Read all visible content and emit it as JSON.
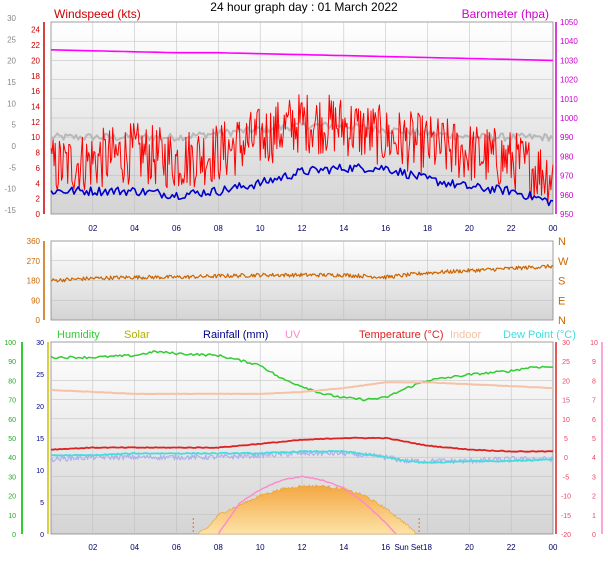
{
  "title": "24 hour graph day : 01 March 2022",
  "colors": {
    "plot_bg_top": "#ffffff",
    "plot_bg_bottom": "#d4d4d4",
    "grid": "#bbbbbb",
    "wind_speed": "#ff0000",
    "wind_avg": "#0000cc",
    "wind_gust_avg": "#b8b8b8",
    "barometer": "#ff00ff",
    "wind_dir": "#cc6600",
    "humidity": "#33cc33",
    "solar": "#f2b24e",
    "rainfall": "#000088",
    "uv": "#ff88cc",
    "temperature": "#dd2222",
    "indoor": "#f5c2a5",
    "dew_point": "#44dddd",
    "lavender": "#b0b0ee",
    "wind_axis_text": "#cc0000",
    "baro_axis_text": "#cc00cc",
    "dir_axis_text": "#cc6600",
    "hum_axis_text": "#22aa22",
    "solar_axis_text": "#b0b000",
    "temp_axis_text": "#ee4466",
    "temp_scale_left": "#000088"
  },
  "chart_data": [
    {
      "type": "line",
      "id": "wind-baro",
      "ylabel_left": "Windspeed (kts)",
      "ylabel_right": "Barometer (hpa)",
      "x_ticks": [
        "02",
        "04",
        "06",
        "08",
        "10",
        "12",
        "14",
        "16",
        "18",
        "20",
        "22",
        "00"
      ],
      "y_left_ticks": [
        "24",
        "22",
        "20",
        "18",
        "16",
        "14",
        "12",
        "10",
        "8",
        "6",
        "4",
        "2",
        "0"
      ],
      "y_left_outer_ticks": [
        "30",
        "25",
        "20",
        "15",
        "10",
        "5",
        "0",
        "-5",
        "-10",
        "-15"
      ],
      "y_right_ticks": [
        "1050",
        "1040",
        "1030",
        "1020",
        "1010",
        "1000",
        "990",
        "980",
        "970",
        "960",
        "950"
      ],
      "ylim_left": [
        0,
        25
      ],
      "ylim_right": [
        950,
        1050
      ],
      "grid": true,
      "series": [
        {
          "key": "barometer",
          "hours": [
            0,
            2,
            4,
            6,
            8,
            10,
            12,
            14,
            16,
            18,
            20,
            22,
            24
          ],
          "values": [
            1035.5,
            1035,
            1034.5,
            1034,
            1034,
            1033.5,
            1033,
            1032.5,
            1032,
            1031.5,
            1031,
            1030.5,
            1030
          ]
        },
        {
          "key": "wind_speed",
          "hours": [
            0,
            2,
            4,
            6,
            8,
            10,
            12,
            14,
            16,
            18,
            20,
            22,
            24
          ],
          "values": [
            6,
            7,
            8,
            7,
            8,
            10,
            12,
            11.5,
            10,
            9,
            8,
            7,
            5
          ]
        },
        {
          "key": "wind_avg",
          "hours": [
            0,
            2,
            4,
            6,
            8,
            10,
            12,
            14,
            16,
            18,
            20,
            22,
            24
          ],
          "values": [
            3,
            3,
            3,
            2.5,
            3,
            4,
            5.5,
            6,
            6,
            4.5,
            3.5,
            3,
            1.5
          ]
        },
        {
          "key": "wind_gust_avg",
          "hours": [
            0,
            2,
            4,
            6,
            8,
            10,
            12,
            14,
            16,
            18,
            20,
            22,
            24
          ],
          "values": [
            10,
            10,
            10,
            10,
            10.5,
            11,
            11.5,
            11.5,
            11,
            10.5,
            10,
            10,
            10
          ]
        }
      ]
    },
    {
      "type": "line",
      "id": "wind-direction",
      "y_left_ticks": [
        "360",
        "270",
        "180",
        "90",
        "0"
      ],
      "y_right_ticks": [
        "N",
        "W",
        "S",
        "E",
        "N"
      ],
      "ylim": [
        0,
        360
      ],
      "grid": true,
      "series": [
        {
          "key": "wind_dir",
          "hours": [
            0,
            2,
            4,
            6,
            8,
            10,
            12,
            14,
            16,
            18,
            20,
            22,
            24
          ],
          "values": [
            180,
            190,
            195,
            195,
            200,
            205,
            205,
            205,
            195,
            215,
            225,
            235,
            245
          ]
        }
      ]
    },
    {
      "type": "line",
      "id": "temp-humidity",
      "legend": [
        "Humidity",
        "Solar",
        "Rainfall (mm)",
        "UV",
        "Temperature (°C)",
        "Indoor",
        "Dew Point (°C)"
      ],
      "x_ticks": [
        "02",
        "04",
        "06",
        "08",
        "10",
        "12",
        "14",
        "16",
        "Sun Set",
        "18",
        "20",
        "22",
        "00"
      ],
      "sunrise_hour": 6.8,
      "sunset_hour": 17.6,
      "humidity_ticks": [
        "100",
        "90",
        "80",
        "70",
        "60",
        "50",
        "40",
        "30",
        "20",
        "10",
        "0"
      ],
      "solar_ticks": [
        "30",
        "25",
        "20",
        "15",
        "10",
        "5",
        "0"
      ],
      "temp_ticks": [
        "30",
        "25",
        "20",
        "15",
        "10",
        "5",
        "0",
        "-5",
        "-10",
        "-15",
        "-20"
      ],
      "uv_ticks": [
        "10",
        "9",
        "8",
        "7",
        "6",
        "5",
        "4",
        "3",
        "2",
        "1",
        "0"
      ],
      "ylim_humidity": [
        0,
        100
      ],
      "ylim_temp": [
        -20,
        30
      ],
      "grid": true,
      "series": [
        {
          "key": "humidity",
          "hours": [
            0,
            2,
            4,
            5,
            6,
            8,
            10,
            11,
            12,
            13,
            14,
            15,
            16,
            17,
            18,
            20,
            22,
            23,
            24
          ],
          "values": [
            92,
            92,
            93,
            95,
            94,
            93,
            88,
            81,
            77,
            73,
            71,
            70,
            71,
            76,
            80,
            83,
            85,
            87,
            87
          ]
        },
        {
          "key": "indoor",
          "hours": [
            0,
            2,
            4,
            6,
            8,
            10,
            12,
            14,
            16,
            18,
            20,
            22,
            24
          ],
          "values": [
            17.5,
            17,
            16.5,
            16.5,
            16.5,
            16.5,
            17,
            18,
            19.5,
            19.5,
            19,
            18.5,
            18
          ]
        },
        {
          "key": "temperature",
          "hours": [
            0,
            2,
            4,
            6,
            8,
            10,
            12,
            14,
            16,
            17,
            18,
            20,
            22,
            24
          ],
          "values": [
            2,
            2.5,
            2.5,
            2.5,
            2.5,
            3.5,
            4.5,
            5,
            5,
            4,
            3,
            2,
            1.5,
            1.5
          ]
        },
        {
          "key": "dew_point",
          "hours": [
            0,
            2,
            4,
            6,
            8,
            10,
            12,
            14,
            16,
            17,
            18,
            20,
            22,
            24
          ],
          "values": [
            0.5,
            0.5,
            1,
            1,
            1,
            1,
            1.5,
            1.5,
            0,
            -1,
            -1.5,
            -1,
            -1,
            -0.5
          ]
        },
        {
          "key": "lavender",
          "hours": [
            0,
            2,
            4,
            6,
            8,
            10,
            12,
            14,
            16,
            17,
            18,
            20,
            22,
            24
          ],
          "values": [
            -0.5,
            0,
            0,
            0,
            0,
            0.5,
            1,
            1,
            0,
            -1,
            -1,
            -1,
            -0.5,
            -0.5
          ]
        },
        {
          "key": "solar",
          "hours": [
            7,
            7.5,
            8,
            9,
            10,
            11,
            12,
            13,
            14,
            15,
            16,
            17,
            17.5
          ],
          "values": [
            0,
            1,
            3,
            4.5,
            6,
            7,
            7.5,
            7.5,
            7,
            6,
            4,
            1.5,
            0
          ]
        },
        {
          "key": "uv",
          "hours": [
            8,
            8.5,
            9,
            10,
            11,
            12,
            13,
            14,
            15,
            16,
            16.5
          ],
          "values": [
            0,
            0.8,
            1.6,
            2.3,
            2.8,
            3,
            2.8,
            2.4,
            1.6,
            0.6,
            0
          ]
        }
      ]
    }
  ]
}
